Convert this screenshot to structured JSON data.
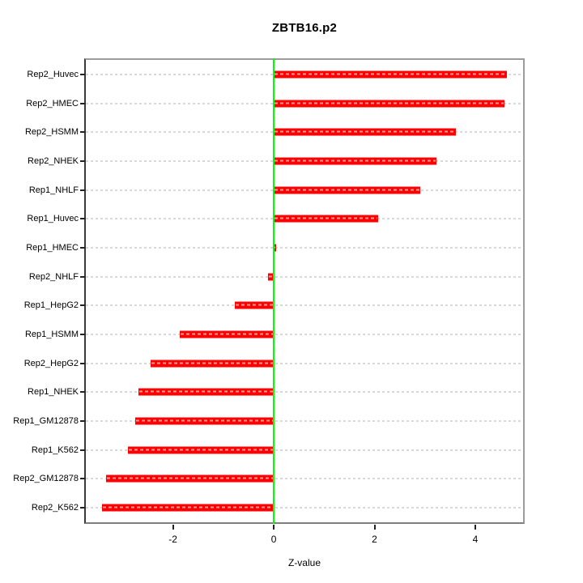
{
  "chart_data": {
    "type": "bar",
    "orientation": "horizontal",
    "title": "ZBTB16.p2",
    "xlabel": "Z-value",
    "categories": [
      "Rep2_Huvec",
      "Rep2_HMEC",
      "Rep2_HSMM",
      "Rep2_NHEK",
      "Rep1_NHLF",
      "Rep1_Huvec",
      "Rep1_HMEC",
      "Rep2_NHLF",
      "Rep1_HepG2",
      "Rep1_HSMM",
      "Rep2_HepG2",
      "Rep1_NHEK",
      "Rep1_GM12878",
      "Rep1_K562",
      "Rep2_GM12878",
      "Rep2_K562"
    ],
    "values": [
      4.66,
      4.6,
      3.63,
      3.25,
      2.93,
      2.08,
      0.05,
      -0.12,
      -0.78,
      -1.88,
      -2.46,
      -2.7,
      -2.78,
      -2.92,
      -3.36,
      -3.44
    ],
    "xlim": [
      -3.76,
      4.98
    ],
    "xticks": [
      -2,
      0,
      2,
      4
    ],
    "xtick_labels": [
      "-2",
      "0",
      "2",
      "4"
    ],
    "grid": true,
    "zero_reference_line": 0,
    "colors": {
      "bar": "#ff0000",
      "bar_dash": "#ff9999",
      "zero_line": "#00ff00",
      "gridline": "#d9d9d9",
      "axis_box": "#9c9c9c"
    }
  }
}
